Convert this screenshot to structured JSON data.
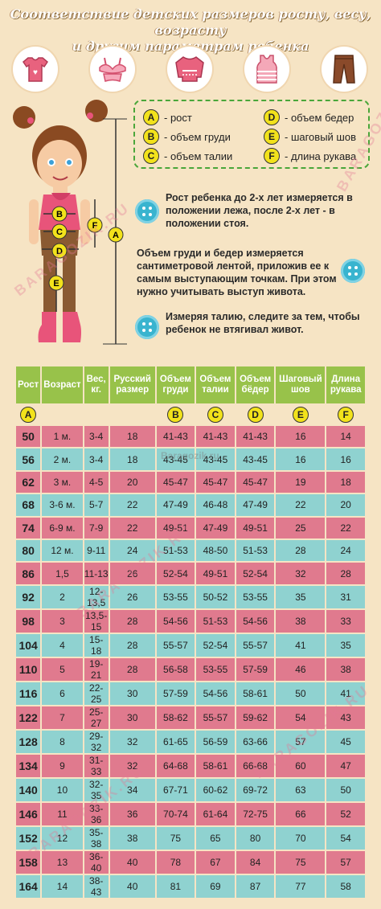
{
  "title": {
    "line1": "Соответствие детских размеров росту, весу, возрасту",
    "line2": "и другим параметрам ребенка"
  },
  "icons": [
    "tshirt-icon",
    "bra-icon",
    "sweater-icon",
    "tanktop-icon",
    "pants-icon"
  ],
  "legend": [
    {
      "letter": "A",
      "label": "- рост"
    },
    {
      "letter": "B",
      "label": "- объем груди"
    },
    {
      "letter": "C",
      "label": "- объем талии"
    },
    {
      "letter": "D",
      "label": "- объем бедер"
    },
    {
      "letter": "E",
      "label": "- шаговый шов"
    },
    {
      "letter": "F",
      "label": "- длина рукава"
    }
  ],
  "notes": {
    "n1": "Рост ребенка до 2-х лет измеряется в положении лежа, после 2-х лет - в положении стоя.",
    "n2": "Объем груди и бедер измеряется сантиметровой лентой, приложив ее к самым выступающим точкам. При этом нужно учитывать выступ живота.",
    "n3": "Измеряя талию, следите за тем, чтобы ребенок не втягивал живот."
  },
  "figure_labels": {
    "a": "A",
    "b": "B",
    "c": "C",
    "d": "D",
    "e": "E",
    "f": "F"
  },
  "watermarks": [
    "BARAGOZIK.RU",
    "Baragozik.ru"
  ],
  "table": {
    "headers": [
      "Рост",
      "Возраст",
      "Вес, кг.",
      "Русский размер",
      "Объем груди",
      "Объем талии",
      "Объем бёдер",
      "Шаговый шов",
      "Длина рукава"
    ],
    "header_letters": [
      "A",
      "",
      "",
      "",
      "B",
      "C",
      "D",
      "E",
      "F"
    ],
    "rows": [
      [
        "50",
        "1 м.",
        "3-4",
        "18",
        "41-43",
        "41-43",
        "41-43",
        "16",
        "14"
      ],
      [
        "56",
        "2 м.",
        "3-4",
        "18",
        "43-45",
        "43-45",
        "43-45",
        "16",
        "16"
      ],
      [
        "62",
        "3 м.",
        "4-5",
        "20",
        "45-47",
        "45-47",
        "45-47",
        "19",
        "18"
      ],
      [
        "68",
        "3-6 м.",
        "5-7",
        "22",
        "47-49",
        "46-48",
        "47-49",
        "22",
        "20"
      ],
      [
        "74",
        "6-9 м.",
        "7-9",
        "22",
        "49-51",
        "47-49",
        "49-51",
        "25",
        "22"
      ],
      [
        "80",
        "12 м.",
        "9-11",
        "24",
        "51-53",
        "48-50",
        "51-53",
        "28",
        "24"
      ],
      [
        "86",
        "1,5",
        "11-13",
        "26",
        "52-54",
        "49-51",
        "52-54",
        "32",
        "28"
      ],
      [
        "92",
        "2",
        "12-13,5",
        "26",
        "53-55",
        "50-52",
        "53-55",
        "35",
        "31"
      ],
      [
        "98",
        "3",
        "13,5-15",
        "28",
        "54-56",
        "51-53",
        "54-56",
        "38",
        "33"
      ],
      [
        "104",
        "4",
        "15-18",
        "28",
        "55-57",
        "52-54",
        "55-57",
        "41",
        "35"
      ],
      [
        "110",
        "5",
        "19-21",
        "28",
        "56-58",
        "53-55",
        "57-59",
        "46",
        "38"
      ],
      [
        "116",
        "6",
        "22-25",
        "30",
        "57-59",
        "54-56",
        "58-61",
        "50",
        "41"
      ],
      [
        "122",
        "7",
        "25-27",
        "30",
        "58-62",
        "55-57",
        "59-62",
        "54",
        "43"
      ],
      [
        "128",
        "8",
        "29-32",
        "32",
        "61-65",
        "56-59",
        "63-66",
        "57",
        "45"
      ],
      [
        "134",
        "9",
        "31-33",
        "32",
        "64-68",
        "58-61",
        "66-68",
        "60",
        "47"
      ],
      [
        "140",
        "10",
        "32-35",
        "34",
        "67-71",
        "60-62",
        "69-72",
        "63",
        "50"
      ],
      [
        "146",
        "11",
        "33-36",
        "36",
        "70-74",
        "61-64",
        "72-75",
        "66",
        "52"
      ],
      [
        "152",
        "12",
        "35-38",
        "38",
        "75",
        "65",
        "80",
        "70",
        "54"
      ],
      [
        "158",
        "13",
        "36-40",
        "40",
        "78",
        "67",
        "84",
        "75",
        "57"
      ],
      [
        "164",
        "14",
        "38-43",
        "40",
        "81",
        "69",
        "87",
        "77",
        "58"
      ]
    ]
  }
}
